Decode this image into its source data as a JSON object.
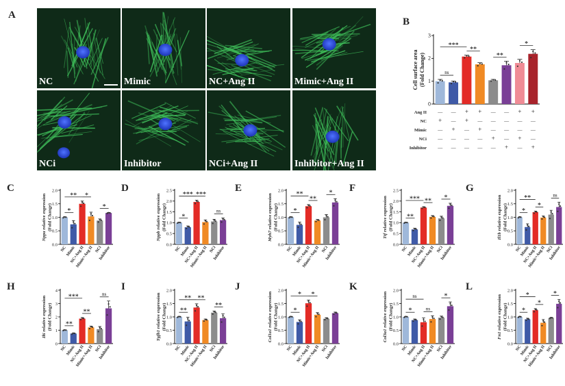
{
  "figure": {
    "panel_letters": [
      "A",
      "B",
      "C",
      "D",
      "E",
      "F",
      "G",
      "H",
      "I",
      "J",
      "K",
      "L"
    ],
    "micrograph_labels": [
      "NC",
      "Mimic",
      "NC+Ang II",
      "Mimic+Ang II",
      "NCi",
      "Inhibitor",
      "NCi+Ang II",
      "Inhibitor+Ang II"
    ],
    "colors": {
      "NC": "#9fb8da",
      "Mimic": "#3f5aa7",
      "NC+Ang II": "#e32b26",
      "Mimic+Ang II": "#f08a24",
      "NCi": "#8c8c8c",
      "Inhibitor": "#7a3f96",
      "B_NCi+AngII": "#f08c96",
      "B_Inhibitor+AngII": "#a8232b",
      "micrograph_bg": "#0f2a18",
      "fiber": "#3fbf5a",
      "nucleus": "#2b4fd8"
    }
  },
  "chart_data": [
    {
      "panel": "B",
      "type": "bar",
      "ylabel": "Cell surface area\n(Fold Change)",
      "ylim": [
        0,
        3
      ],
      "yticks": [
        0,
        1,
        2,
        3
      ],
      "categories": [
        "NC",
        "Mimic",
        "NC+Ang II",
        "Mimic+Ang II",
        "NCi",
        "Inhibitor",
        "NCi+Ang II",
        "Inhibitor+Ang II"
      ],
      "values": [
        1.0,
        0.95,
        2.08,
        1.74,
        1.04,
        1.7,
        1.8,
        2.2
      ],
      "errors": [
        0.08,
        0.06,
        0.06,
        0.07,
        0.04,
        0.18,
        0.16,
        0.18
      ],
      "factor_table": {
        "rows": [
          "Ang II",
          "NC",
          "Mimic",
          "NCi",
          "Inhibitor"
        ],
        "signs": [
          [
            "-",
            "-",
            "+",
            "+",
            "-",
            "-",
            "+",
            "+"
          ],
          [
            "+",
            "-",
            "+",
            "-",
            "-",
            "-",
            "-",
            "-"
          ],
          [
            "-",
            "+",
            "-",
            "+",
            "-",
            "-",
            "-",
            "-"
          ],
          [
            "-",
            "-",
            "-",
            "-",
            "+",
            "-",
            "+",
            "-"
          ],
          [
            "-",
            "-",
            "-",
            "-",
            "-",
            "+",
            "-",
            "+"
          ]
        ]
      },
      "significance": [
        {
          "from": 0,
          "to": 1,
          "label": "ns"
        },
        {
          "from": 0,
          "to": 2,
          "label": "***"
        },
        {
          "from": 2,
          "to": 3,
          "label": "**"
        },
        {
          "from": 4,
          "to": 5,
          "label": "**"
        },
        {
          "from": 6,
          "to": 7,
          "label": "*"
        }
      ]
    },
    {
      "panel": "C",
      "type": "bar",
      "ylabel": "Nppa relative expression\n(Fold Change)",
      "ylim": [
        0,
        2.0
      ],
      "yticks": [
        0,
        0.5,
        1.0,
        1.5,
        2.0
      ],
      "categories": [
        "NC",
        "Mimic",
        "NC+Ang II",
        "Mimic+Ang II",
        "NCi",
        "Inhibitor"
      ],
      "values": [
        1.0,
        0.74,
        1.5,
        1.03,
        0.88,
        1.16
      ],
      "errors": [
        0.02,
        0.14,
        0.1,
        0.16,
        0.06,
        0.02
      ],
      "significance": [
        {
          "from": 0,
          "to": 1,
          "label": "*"
        },
        {
          "from": 0,
          "to": 2,
          "label": "**"
        },
        {
          "from": 2,
          "to": 3,
          "label": "*"
        },
        {
          "from": 4,
          "to": 5,
          "label": "*"
        }
      ]
    },
    {
      "panel": "D",
      "type": "bar",
      "ylabel": "Nppb relative expression\n(Fold Change)",
      "ylim": [
        0,
        2.5
      ],
      "yticks": [
        0,
        0.5,
        1.0,
        1.5,
        2.0,
        2.5
      ],
      "categories": [
        "NC",
        "Mimic",
        "NC+Ang II",
        "Mimic+Ang II",
        "NCi",
        "Inhibitor"
      ],
      "values": [
        1.0,
        0.79,
        1.96,
        1.03,
        1.06,
        1.12
      ],
      "errors": [
        0.02,
        0.06,
        0.08,
        0.1,
        0.1,
        0.1
      ],
      "significance": [
        {
          "from": 0,
          "to": 1,
          "label": "*"
        },
        {
          "from": 0,
          "to": 2,
          "label": "***"
        },
        {
          "from": 2,
          "to": 3,
          "label": "***"
        },
        {
          "from": 4,
          "to": 5,
          "label": "ns"
        }
      ]
    },
    {
      "panel": "E",
      "type": "bar",
      "ylabel": "Myh7 relative expression\n(Fold Change)",
      "ylim": [
        0,
        2.0
      ],
      "yticks": [
        0,
        0.5,
        1.0,
        1.5,
        2.0
      ],
      "categories": [
        "NC",
        "Mimic",
        "NC+Ang II",
        "Mimic+Ang II",
        "NCi",
        "Inhibitor"
      ],
      "values": [
        1.0,
        0.72,
        1.41,
        0.88,
        1.0,
        1.55
      ],
      "errors": [
        0.02,
        0.1,
        0.06,
        0.04,
        0.1,
        0.14
      ],
      "significance": [
        {
          "from": 0,
          "to": 1,
          "label": "*"
        },
        {
          "from": 0,
          "to": 2,
          "label": "**"
        },
        {
          "from": 2,
          "to": 3,
          "label": "**"
        },
        {
          "from": 4,
          "to": 5,
          "label": "*"
        }
      ]
    },
    {
      "panel": "F",
      "type": "bar",
      "ylabel": "Ttf relative expression\n(Fold Change)",
      "ylim": [
        0,
        2.5
      ],
      "yticks": [
        0,
        0.5,
        1.0,
        1.5,
        2.0,
        2.5
      ],
      "categories": [
        "NC",
        "Mimic",
        "NC+Ang II",
        "Mimic+Ang II",
        "NCi",
        "Inhibitor"
      ],
      "values": [
        1.0,
        0.69,
        1.7,
        1.27,
        1.2,
        1.78
      ],
      "errors": [
        0.02,
        0.06,
        0.04,
        0.06,
        0.1,
        0.12
      ],
      "significance": [
        {
          "from": 0,
          "to": 1,
          "label": "**"
        },
        {
          "from": 0,
          "to": 2,
          "label": "***"
        },
        {
          "from": 2,
          "to": 3,
          "label": "**"
        },
        {
          "from": 4,
          "to": 5,
          "label": "*"
        }
      ]
    },
    {
      "panel": "G",
      "type": "bar",
      "ylabel": "Il1b relative expression\n(Fold Change)",
      "ylim": [
        0,
        2.0
      ],
      "yticks": [
        0,
        0.5,
        1.0,
        1.5,
        2.0
      ],
      "categories": [
        "NC",
        "Mimic",
        "NC+Ang II",
        "Mimic+Ang II",
        "NCi",
        "Inhibitor"
      ],
      "values": [
        1.0,
        0.64,
        1.19,
        0.99,
        1.1,
        1.38
      ],
      "errors": [
        0.02,
        0.12,
        0.04,
        0.06,
        0.16,
        0.18
      ],
      "significance": [
        {
          "from": 0,
          "to": 1,
          "label": "*"
        },
        {
          "from": 0,
          "to": 2,
          "label": "**"
        },
        {
          "from": 2,
          "to": 3,
          "label": "*"
        },
        {
          "from": 4,
          "to": 5,
          "label": "ns"
        }
      ]
    },
    {
      "panel": "H",
      "type": "bar",
      "ylabel": "Il6 relative expression\n(Fold Change)",
      "ylim": [
        0,
        4
      ],
      "yticks": [
        0,
        1,
        2,
        3,
        4
      ],
      "categories": [
        "NC",
        "Mimic",
        "NC+Ang II",
        "Mimic+Ang II",
        "NCi",
        "Inhibitor"
      ],
      "values": [
        1.0,
        0.75,
        1.87,
        1.21,
        1.08,
        2.64
      ],
      "errors": [
        0.03,
        0.05,
        0.08,
        0.1,
        0.2,
        0.55
      ],
      "significance": [
        {
          "from": 0,
          "to": 1,
          "label": "**"
        },
        {
          "from": 0,
          "to": 2,
          "label": "***"
        },
        {
          "from": 2,
          "to": 3,
          "label": "**"
        },
        {
          "from": 4,
          "to": 5,
          "label": "ns"
        }
      ]
    },
    {
      "panel": "I",
      "type": "bar",
      "ylabel": "Tgfb1 relative expression\n(Fold Change)",
      "ylim": [
        0,
        2.0
      ],
      "yticks": [
        0,
        0.5,
        1.0,
        1.5,
        2.0
      ],
      "categories": [
        "NC",
        "Mimic",
        "NC+Ang II",
        "Mimic+Ang II",
        "NCi",
        "Inhibitor"
      ],
      "values": [
        1.0,
        0.83,
        1.35,
        0.88,
        1.16,
        0.95
      ],
      "errors": [
        0.02,
        0.16,
        0.14,
        0.04,
        0.06,
        0.16
      ],
      "significance": [
        {
          "from": 0,
          "to": 1,
          "label": "**"
        },
        {
          "from": 0,
          "to": 2,
          "label": "**"
        },
        {
          "from": 2,
          "to": 3,
          "label": "**"
        },
        {
          "from": 4,
          "to": 5,
          "label": "**"
        }
      ]
    },
    {
      "panel": "J",
      "type": "bar",
      "ylabel": "Col1a1 relative expression\n(Fold Change)",
      "ylim": [
        0,
        2.0
      ],
      "yticks": [
        0,
        0.5,
        1.0,
        1.5,
        2.0
      ],
      "categories": [
        "NC",
        "Mimic",
        "NC+Ang II",
        "Mimic+Ang II",
        "NCi",
        "Inhibitor"
      ],
      "values": [
        1.0,
        0.81,
        1.51,
        1.08,
        0.93,
        1.14
      ],
      "errors": [
        0.02,
        0.08,
        0.12,
        0.08,
        0.04,
        0.04
      ],
      "significance": [
        {
          "from": 0,
          "to": 1,
          "label": "*"
        },
        {
          "from": 0,
          "to": 2,
          "label": "*"
        },
        {
          "from": 2,
          "to": 3,
          "label": "*"
        }
      ]
    },
    {
      "panel": "K",
      "type": "bar",
      "ylabel": "Col3a1 relative expression\n(Fold Change)",
      "ylim": [
        0,
        2.0
      ],
      "yticks": [
        0,
        0.5,
        1.0,
        1.5,
        2.0
      ],
      "categories": [
        "NC",
        "Mimic",
        "NC+Ang II",
        "Mimic+Ang II",
        "NCi",
        "Inhibitor"
      ],
      "values": [
        1.0,
        0.88,
        0.8,
        0.92,
        0.97,
        1.4
      ],
      "errors": [
        0.02,
        0.04,
        0.16,
        0.12,
        0.06,
        0.16
      ],
      "significance": [
        {
          "from": 0,
          "to": 1,
          "label": "*"
        },
        {
          "from": 0,
          "to": 2,
          "label": "ns"
        },
        {
          "from": 2,
          "to": 3,
          "label": "ns"
        },
        {
          "from": 4,
          "to": 5,
          "label": "*"
        }
      ]
    },
    {
      "panel": "L",
      "type": "bar",
      "ylabel": "Fn1 relative expression\n(Fold Change)",
      "ylim": [
        0,
        2.0
      ],
      "yticks": [
        0,
        0.5,
        1.0,
        1.5,
        2.0
      ],
      "categories": [
        "NC",
        "Mimic",
        "NC+Ang II",
        "Mimic+Ang II",
        "NCi",
        "Inhibitor"
      ],
      "values": [
        1.0,
        0.91,
        1.25,
        0.78,
        0.96,
        1.49
      ],
      "errors": [
        0.02,
        0.04,
        0.06,
        0.12,
        0.02,
        0.16
      ],
      "significance": [
        {
          "from": 0,
          "to": 1,
          "label": "*"
        },
        {
          "from": 0,
          "to": 2,
          "label": "*"
        },
        {
          "from": 2,
          "to": 3,
          "label": "*"
        },
        {
          "from": 4,
          "to": 5,
          "label": "*"
        }
      ]
    }
  ]
}
